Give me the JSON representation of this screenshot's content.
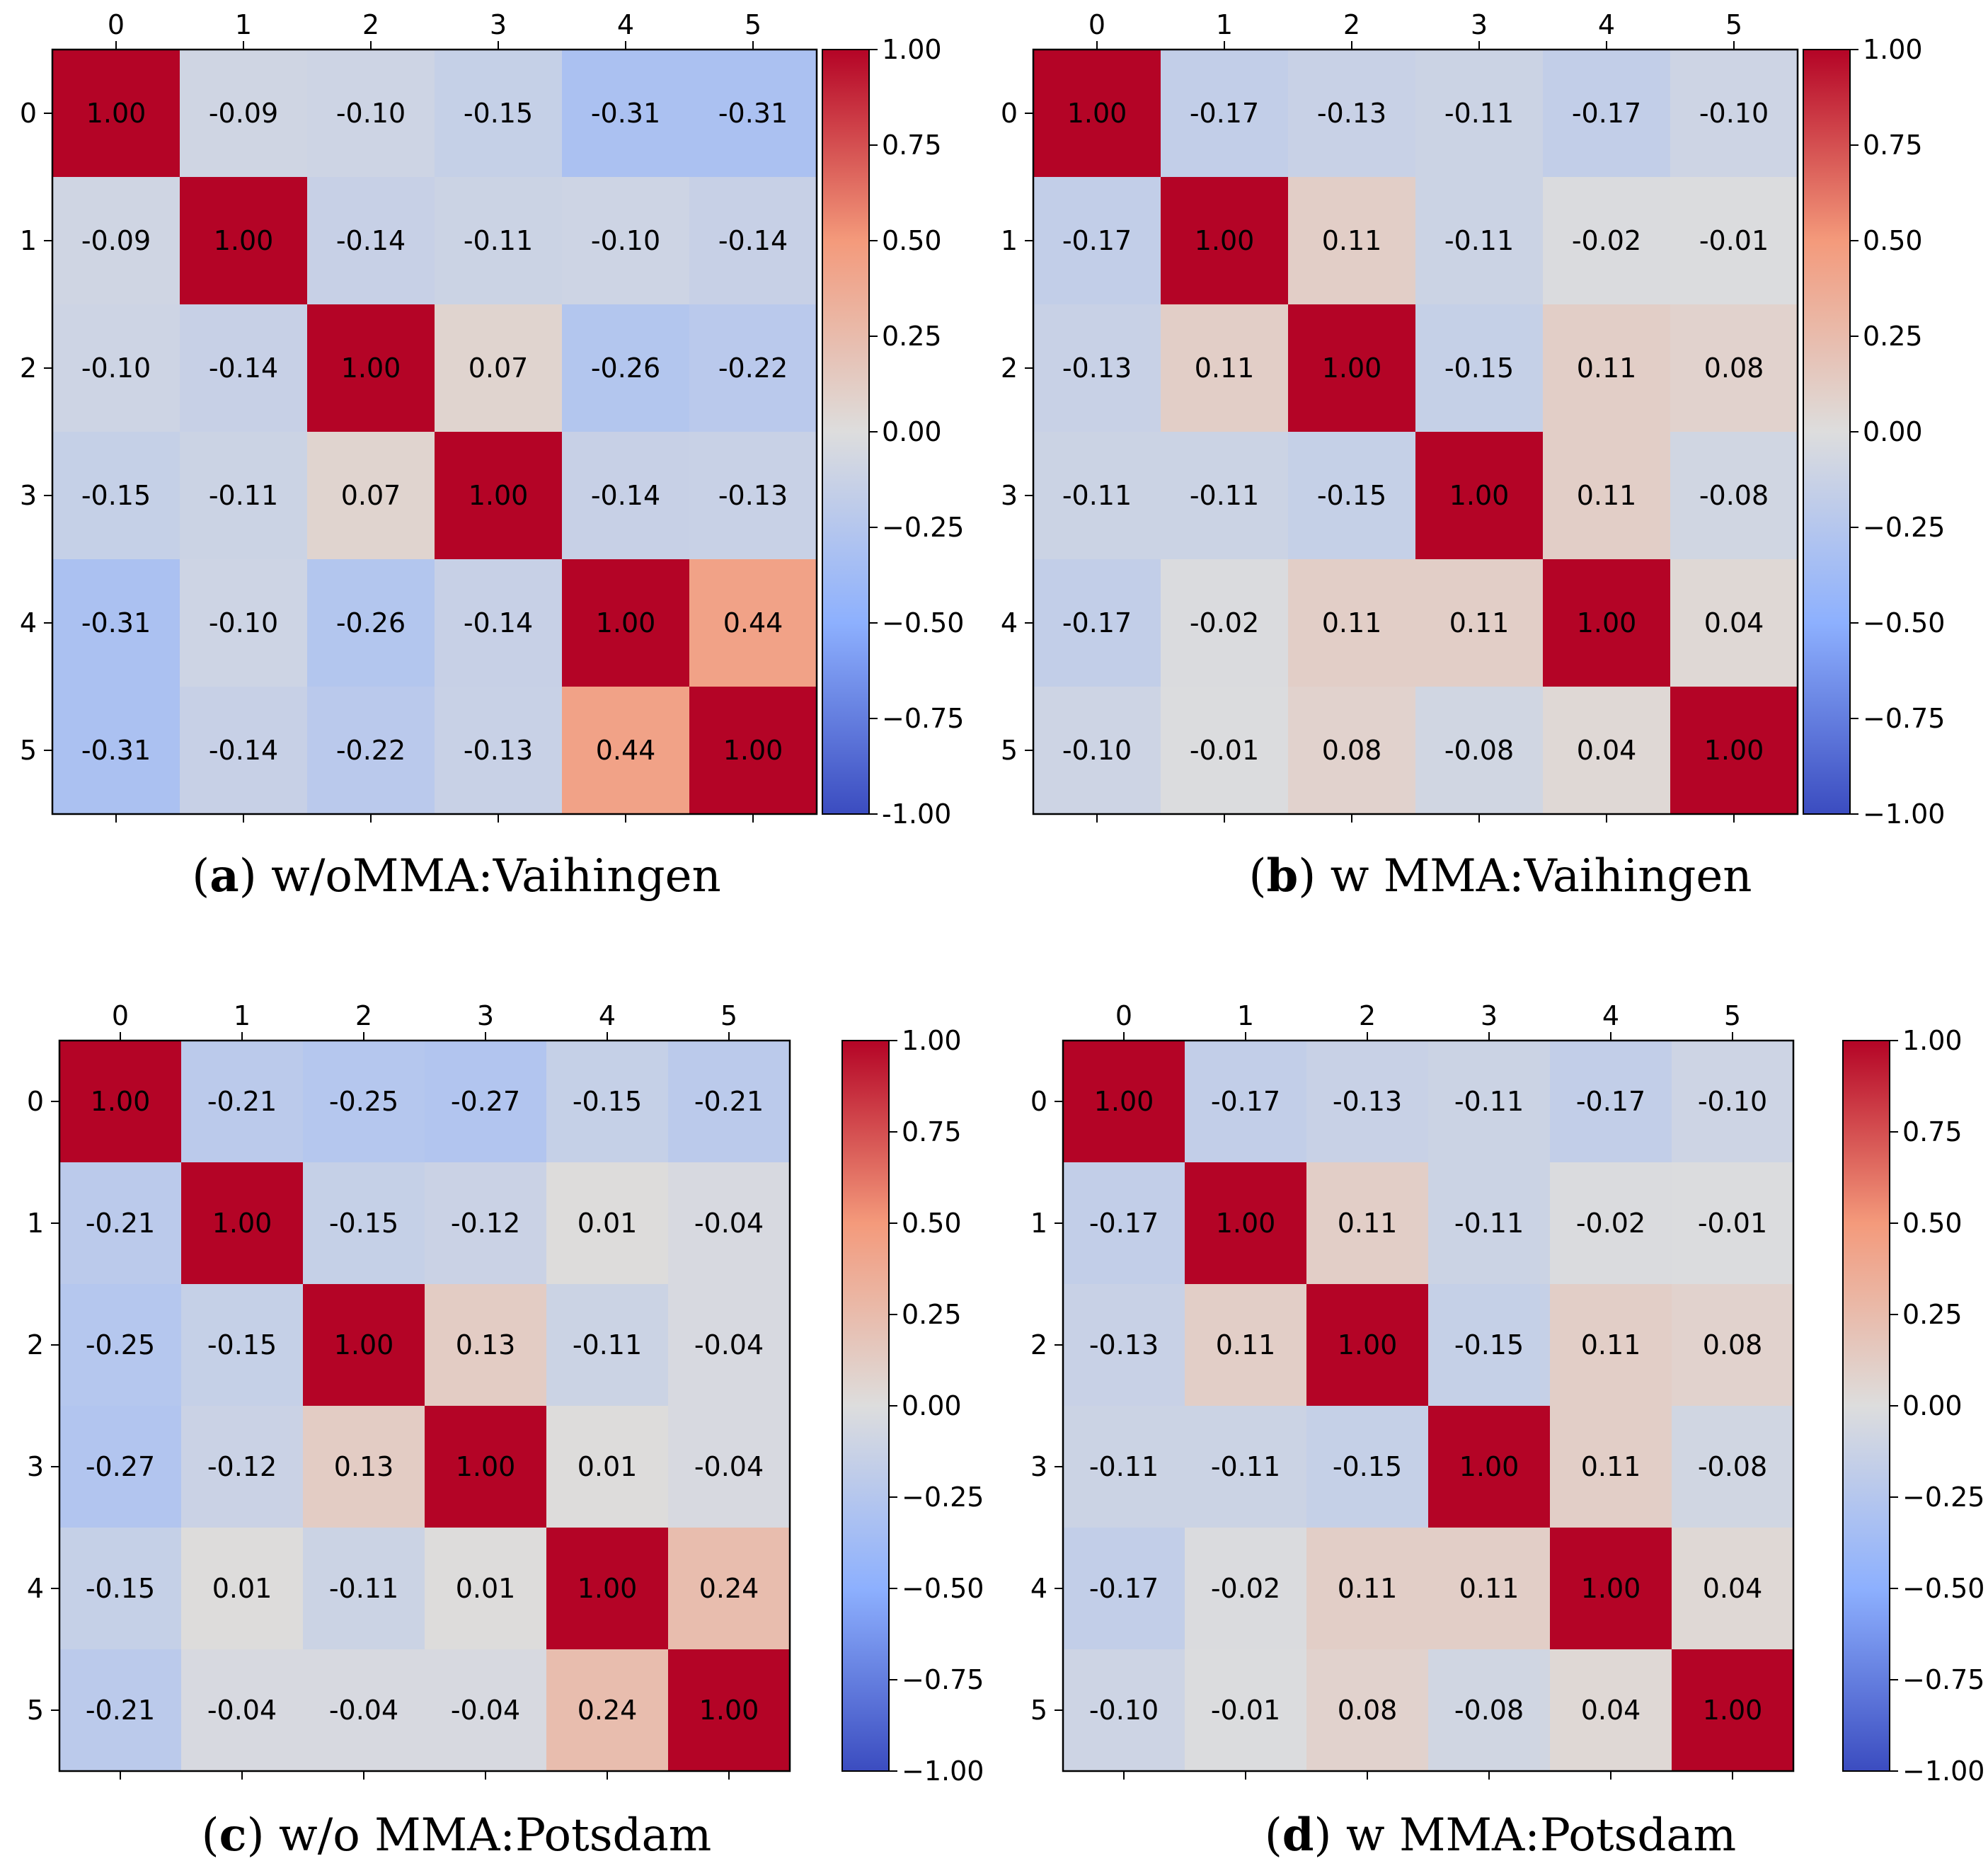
{
  "chart_data": [
    {
      "type": "heatmap",
      "panel_letter": "a",
      "title": "w/oMMA:Vaihingen",
      "row_labels": [
        "0",
        "1",
        "2",
        "3",
        "4",
        "5"
      ],
      "col_labels": [
        "0",
        "1",
        "2",
        "3",
        "4",
        "5"
      ],
      "values": [
        [
          1.0,
          -0.09,
          -0.1,
          -0.15,
          -0.31,
          -0.31
        ],
        [
          -0.09,
          1.0,
          -0.14,
          -0.11,
          -0.1,
          -0.14
        ],
        [
          -0.1,
          -0.14,
          1.0,
          0.07,
          -0.26,
          -0.22
        ],
        [
          -0.15,
          -0.11,
          0.07,
          1.0,
          -0.14,
          -0.13
        ],
        [
          -0.31,
          -0.1,
          -0.26,
          -0.14,
          1.0,
          0.44
        ],
        [
          -0.31,
          -0.14,
          -0.22,
          -0.13,
          0.44,
          1.0
        ]
      ],
      "colorbar": {
        "min": -1.0,
        "max": 1.0,
        "ticks": [
          "1.00",
          "0.75",
          "0.50",
          "0.25",
          "0.00",
          "−0.25",
          "−0.50",
          "−0.75",
          "-1.00"
        ]
      }
    },
    {
      "type": "heatmap",
      "panel_letter": "b",
      "title": "w MMA:Vaihingen",
      "row_labels": [
        "0",
        "1",
        "2",
        "3",
        "4",
        "5"
      ],
      "col_labels": [
        "0",
        "1",
        "2",
        "3",
        "4",
        "5"
      ],
      "values": [
        [
          1.0,
          -0.17,
          -0.13,
          -0.11,
          -0.17,
          -0.1
        ],
        [
          -0.17,
          1.0,
          0.11,
          -0.11,
          -0.02,
          -0.01
        ],
        [
          -0.13,
          0.11,
          1.0,
          -0.15,
          0.11,
          0.08
        ],
        [
          -0.11,
          -0.11,
          -0.15,
          1.0,
          0.11,
          -0.08
        ],
        [
          -0.17,
          -0.02,
          0.11,
          0.11,
          1.0,
          0.04
        ],
        [
          -0.1,
          -0.01,
          0.08,
          -0.08,
          0.04,
          1.0
        ]
      ],
      "colorbar": {
        "min": -1.0,
        "max": 1.0,
        "ticks": [
          "1.00",
          "0.75",
          "0.50",
          "0.25",
          "0.00",
          "−0.25",
          "−0.50",
          "−0.75",
          "−1.00"
        ]
      }
    },
    {
      "type": "heatmap",
      "panel_letter": "c",
      "title": "w/o MMA:Potsdam",
      "row_labels": [
        "0",
        "1",
        "2",
        "3",
        "4",
        "5"
      ],
      "col_labels": [
        "0",
        "1",
        "2",
        "3",
        "4",
        "5"
      ],
      "values": [
        [
          1.0,
          -0.21,
          -0.25,
          -0.27,
          -0.15,
          -0.21
        ],
        [
          -0.21,
          1.0,
          -0.15,
          -0.12,
          0.01,
          -0.04
        ],
        [
          -0.25,
          -0.15,
          1.0,
          0.13,
          -0.11,
          -0.04
        ],
        [
          -0.27,
          -0.12,
          0.13,
          1.0,
          0.01,
          -0.04
        ],
        [
          -0.15,
          0.01,
          -0.11,
          0.01,
          1.0,
          0.24
        ],
        [
          -0.21,
          -0.04,
          -0.04,
          -0.04,
          0.24,
          1.0
        ]
      ],
      "colorbar": {
        "min": -1.0,
        "max": 1.0,
        "ticks": [
          "1.00",
          "0.75",
          "0.50",
          "0.25",
          "0.00",
          "−0.25",
          "−0.50",
          "−0.75",
          "−1.00"
        ]
      }
    },
    {
      "type": "heatmap",
      "panel_letter": "d",
      "title": "w MMA:Potsdam",
      "row_labels": [
        "0",
        "1",
        "2",
        "3",
        "4",
        "5"
      ],
      "col_labels": [
        "0",
        "1",
        "2",
        "3",
        "4",
        "5"
      ],
      "values": [
        [
          1.0,
          -0.17,
          -0.13,
          -0.11,
          -0.17,
          -0.1
        ],
        [
          -0.17,
          1.0,
          0.11,
          -0.11,
          -0.02,
          -0.01
        ],
        [
          -0.13,
          0.11,
          1.0,
          -0.15,
          0.11,
          0.08
        ],
        [
          -0.11,
          -0.11,
          -0.15,
          1.0,
          0.11,
          -0.08
        ],
        [
          -0.17,
          -0.02,
          0.11,
          0.11,
          1.0,
          0.04
        ],
        [
          -0.1,
          -0.01,
          0.08,
          -0.08,
          0.04,
          1.0
        ]
      ],
      "colorbar": {
        "min": -1.0,
        "max": 1.0,
        "ticks": [
          "1.00",
          "0.75",
          "0.50",
          "0.25",
          "0.00",
          "−0.25",
          "−0.50",
          "−0.75",
          "−1.00"
        ]
      }
    }
  ]
}
